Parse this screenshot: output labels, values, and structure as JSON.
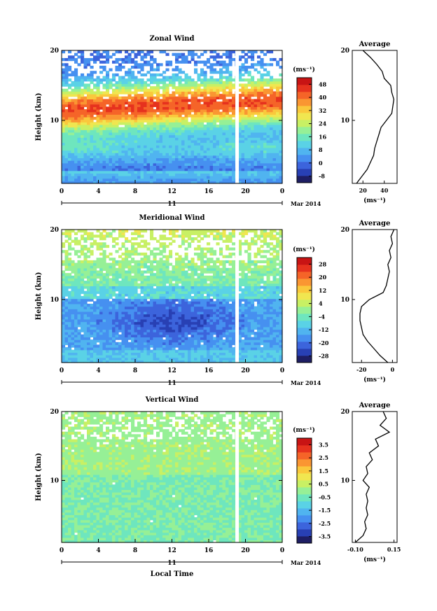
{
  "chart_data": [
    {
      "type": "heatmap",
      "title": "Zonal Wind",
      "xlabel": "",
      "ylabel": "Height (km)",
      "x_ticks": [
        "0",
        "4",
        "8",
        "12",
        "16",
        "20",
        "0"
      ],
      "y_ticks": [
        "10",
        "20"
      ],
      "date_axis": {
        "day": "11",
        "month_year": "Mar 2014"
      },
      "colorbar": {
        "unit": "(ms⁻¹)",
        "ticks": [
          "48",
          "40",
          "32",
          "24",
          "16",
          "8",
          "0",
          "-8"
        ],
        "range": [
          -8,
          52
        ]
      },
      "colors": [
        "#1e1e64",
        "#2840b4",
        "#3c64dc",
        "#4690f0",
        "#50b4f0",
        "#5ad2e6",
        "#6ee6be",
        "#96f096",
        "#c8f064",
        "#f0e650",
        "#fac83c",
        "#fa9632",
        "#f56428",
        "#e6321e",
        "#c81414"
      ],
      "profile": {
        "title": "Average",
        "unit": "(ms⁻¹)",
        "x_ticks": [
          "20",
          "40"
        ],
        "y_ticks": [
          "10",
          "20"
        ],
        "xlim": [
          10,
          52
        ],
        "heights": [
          1,
          2,
          3,
          4,
          5,
          6,
          7,
          8,
          9,
          10,
          11,
          12,
          13,
          14,
          15,
          16,
          17,
          18,
          19,
          20
        ],
        "values": [
          14,
          19,
          24,
          27,
          30,
          31,
          33,
          35,
          37,
          42,
          47,
          48,
          49,
          47,
          46,
          40,
          38,
          33,
          27,
          20
        ]
      }
    },
    {
      "type": "heatmap",
      "title": "Meridional Wind",
      "xlabel": "",
      "ylabel": "Height (km)",
      "x_ticks": [
        "0",
        "4",
        "8",
        "12",
        "16",
        "20",
        "0"
      ],
      "y_ticks": [
        "10",
        "20"
      ],
      "date_axis": {
        "day": "11",
        "month_year": "Mar 2014"
      },
      "colorbar": {
        "unit": "(ms⁻¹)",
        "ticks": [
          "28",
          "20",
          "12",
          "4",
          "-4",
          "-12",
          "-20",
          "-28"
        ],
        "range": [
          -32,
          32
        ]
      },
      "colors": [
        "#1e1e64",
        "#2840b4",
        "#3c64dc",
        "#4690f0",
        "#50b4f0",
        "#5ad2e6",
        "#6ee6be",
        "#96f096",
        "#c8f064",
        "#f0e650",
        "#fac83c",
        "#fa9632",
        "#f56428",
        "#e6321e",
        "#c81414"
      ],
      "profile": {
        "title": "Average",
        "unit": "(ms⁻¹)",
        "x_ticks": [
          "-20",
          "0"
        ],
        "y_ticks": [
          "10",
          "20"
        ],
        "xlim": [
          -26,
          3
        ],
        "heights": [
          1,
          2,
          3,
          4,
          5,
          6,
          7,
          8,
          9,
          10,
          11,
          12,
          13,
          14,
          15,
          16,
          17,
          18,
          19,
          20
        ],
        "values": [
          -3,
          -8,
          -12,
          -16,
          -19,
          -20,
          -21,
          -21,
          -20,
          -15,
          -6,
          -4,
          -3,
          -2,
          -3,
          -1,
          -2,
          0,
          -1,
          1
        ]
      }
    },
    {
      "type": "heatmap",
      "title": "Vertical Wind",
      "xlabel": "Local Time",
      "ylabel": "Height (km)",
      "x_ticks": [
        "0",
        "4",
        "8",
        "12",
        "16",
        "20",
        "0"
      ],
      "y_ticks": [
        "10",
        "20"
      ],
      "date_axis": {
        "day": "11",
        "month_year": "Mar 2014"
      },
      "colorbar": {
        "unit": "(ms⁻¹)",
        "ticks": [
          "3.5",
          "2.5",
          "1.5",
          "0.5",
          "-0.5",
          "-1.5",
          "-2.5",
          "-3.5"
        ],
        "range": [
          -4,
          4
        ]
      },
      "colors": [
        "#1e1e64",
        "#2840b4",
        "#3c64dc",
        "#4690f0",
        "#50b4f0",
        "#5ad2e6",
        "#6ee6be",
        "#96f096",
        "#c8f064",
        "#f0e650",
        "#fac83c",
        "#fa9632",
        "#f56428",
        "#e6321e",
        "#c81414"
      ],
      "profile": {
        "title": "Average",
        "unit": "(ms⁻¹)",
        "x_ticks": [
          "-0.10",
          "0.15"
        ],
        "y_ticks": [
          "10",
          "20"
        ],
        "xlim": [
          -0.12,
          0.17
        ],
        "heights": [
          1,
          2,
          3,
          4,
          5,
          6,
          7,
          8,
          9,
          10,
          11,
          12,
          13,
          14,
          15,
          16,
          17,
          18,
          19,
          20
        ],
        "values": [
          -0.1,
          -0.05,
          -0.03,
          -0.04,
          -0.02,
          -0.03,
          -0.02,
          -0.03,
          -0.01,
          -0.05,
          -0.02,
          -0.03,
          0.01,
          -0.01,
          0.05,
          0.03,
          0.12,
          0.06,
          0.1,
          0.08
        ]
      }
    }
  ]
}
